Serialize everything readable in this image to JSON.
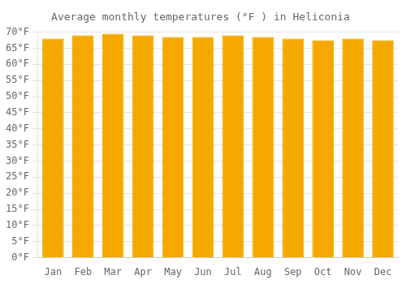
{
  "chart_data": {
    "type": "bar",
    "title": "Average monthly temperatures (°F ) in Heliconia",
    "categories": [
      "Jan",
      "Feb",
      "Mar",
      "Apr",
      "May",
      "Jun",
      "Jul",
      "Aug",
      "Sep",
      "Oct",
      "Nov",
      "Dec"
    ],
    "values": [
      68.0,
      69.0,
      69.5,
      69.0,
      68.5,
      68.5,
      69.0,
      68.5,
      68.0,
      67.5,
      68.0,
      67.5
    ],
    "color": "#F5A800",
    "ylim": [
      0,
      70
    ],
    "yticks": [
      {
        "value": 0,
        "label": "0°F"
      },
      {
        "value": 5,
        "label": "5°F"
      },
      {
        "value": 10,
        "label": "10°F"
      },
      {
        "value": 15,
        "label": "15°F"
      },
      {
        "value": 20,
        "label": "20°F"
      },
      {
        "value": 25,
        "label": "25°F"
      },
      {
        "value": 30,
        "label": "30°F"
      },
      {
        "value": 35,
        "label": "35°F"
      },
      {
        "value": 40,
        "label": "40°F"
      },
      {
        "value": 45,
        "label": "45°F"
      },
      {
        "value": 50,
        "label": "50°F"
      },
      {
        "value": 55,
        "label": "55°F"
      },
      {
        "value": 60,
        "label": "60°F"
      },
      {
        "value": 65,
        "label": "65°F"
      },
      {
        "value": 70,
        "label": "70°F"
      }
    ],
    "grid": true
  }
}
